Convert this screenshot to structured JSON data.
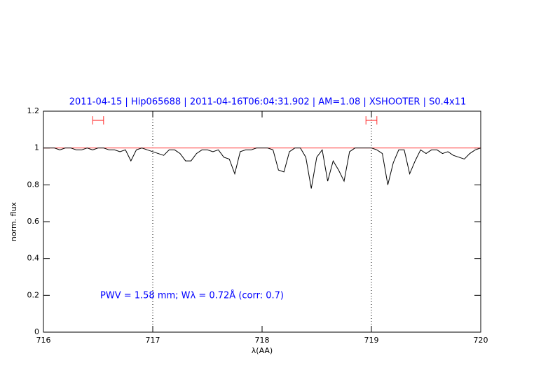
{
  "chart_data": {
    "type": "line",
    "title": "2011-04-15 | Hip065688 | 2011-04-16T06:04:31.902 | AM=1.08 | XSHOOTER | S0.4x11",
    "annotation": "PWV = 1.58 mm; Wλ = 0.72Å (corr: 0.7)",
    "xlabel": "λ(AA)",
    "ylabel": "norm. flux",
    "xlim": [
      716,
      720
    ],
    "ylim": [
      0,
      1.2
    ],
    "xticks": [
      716,
      717,
      718,
      719,
      720
    ],
    "yticks": [
      0,
      0.2,
      0.4,
      0.6,
      0.8,
      1,
      1.2
    ],
    "vlines": [
      717,
      719
    ],
    "hline": 1,
    "hline_color": "#ff3030",
    "windows": [
      [
        716.45,
        716.55
      ],
      [
        718.95,
        719.05
      ]
    ],
    "windows_y": 1.15,
    "windows_color": "#ff3030",
    "x": [
      716.0,
      716.05,
      716.1,
      716.15,
      716.2,
      716.25,
      716.3,
      716.35,
      716.4,
      716.45,
      716.5,
      716.55,
      716.6,
      716.65,
      716.7,
      716.75,
      716.8,
      716.85,
      716.9,
      716.95,
      717.0,
      717.05,
      717.1,
      717.15,
      717.2,
      717.25,
      717.3,
      717.35,
      717.4,
      717.45,
      717.5,
      717.55,
      717.6,
      717.65,
      717.7,
      717.75,
      717.8,
      717.85,
      717.9,
      717.95,
      718.0,
      718.05,
      718.1,
      718.15,
      718.2,
      718.25,
      718.3,
      718.35,
      718.4,
      718.45,
      718.5,
      718.55,
      718.6,
      718.65,
      718.7,
      718.75,
      718.8,
      718.85,
      718.9,
      718.95,
      719.0,
      719.05,
      719.1,
      719.15,
      719.2,
      719.25,
      719.3,
      719.35,
      719.4,
      719.45,
      719.5,
      719.55,
      719.6,
      719.65,
      719.7,
      719.75,
      719.8,
      719.85,
      719.9,
      719.95,
      720.0
    ],
    "series": [
      {
        "color": "#000000",
        "values": [
          1.0,
          1.0,
          1.0,
          0.99,
          1.0,
          1.0,
          0.99,
          0.99,
          1.0,
          0.99,
          1.0,
          1.0,
          0.99,
          0.99,
          0.98,
          0.99,
          0.93,
          0.99,
          1.0,
          0.99,
          0.98,
          0.97,
          0.96,
          0.99,
          0.99,
          0.97,
          0.93,
          0.93,
          0.97,
          0.99,
          0.99,
          0.98,
          0.99,
          0.95,
          0.94,
          0.86,
          0.98,
          0.99,
          0.99,
          1.0,
          1.0,
          1.0,
          0.99,
          0.88,
          0.87,
          0.98,
          1.0,
          1.0,
          0.95,
          0.78,
          0.95,
          0.99,
          0.82,
          0.93,
          0.88,
          0.82,
          0.98,
          1.0,
          1.0,
          1.0,
          1.0,
          0.99,
          0.97,
          0.8,
          0.92,
          0.99,
          0.99,
          0.86,
          0.93,
          0.99,
          0.97,
          0.99,
          0.99,
          0.97,
          0.98,
          0.96,
          0.95,
          0.94,
          0.97,
          0.99,
          1.0
        ]
      }
    ]
  }
}
